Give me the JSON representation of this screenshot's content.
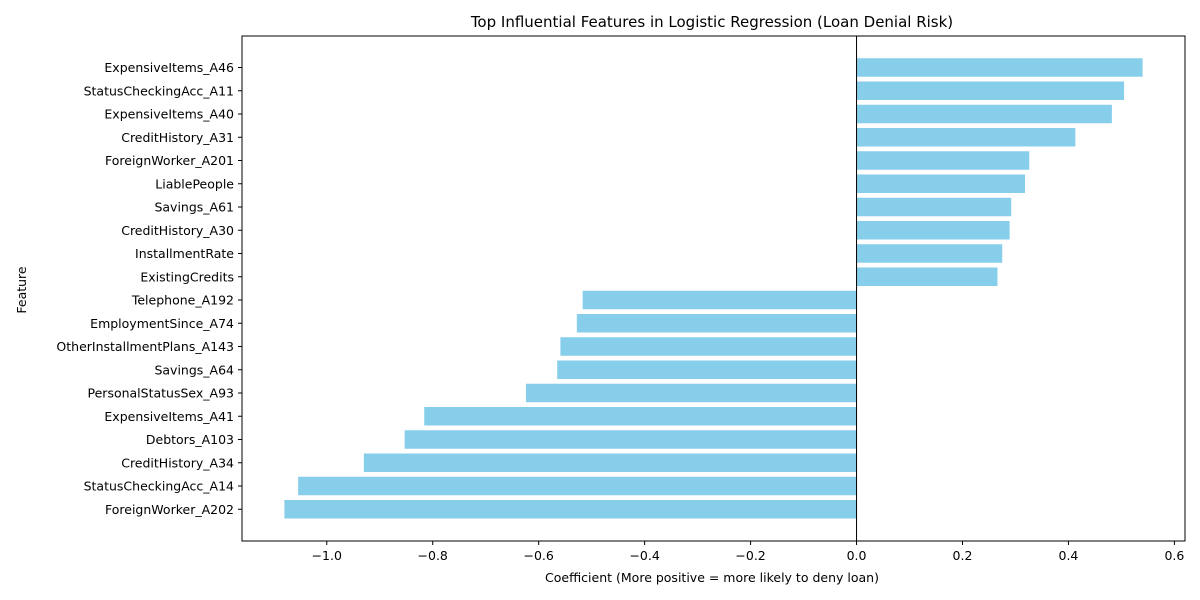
{
  "chart_data": {
    "type": "bar",
    "orientation": "horizontal",
    "title": "Top Influential Features in Logistic Regression (Loan Denial Risk)",
    "xlabel": "Coefficient (More positive = more likely to deny loan)",
    "ylabel": "Feature",
    "xlim": [
      -1.16,
      0.62
    ],
    "xticks": [
      -1.0,
      -0.8,
      -0.6,
      -0.4,
      -0.2,
      0.0,
      0.2,
      0.4,
      0.6
    ],
    "xtick_labels": [
      "−1.0",
      "−0.8",
      "−0.6",
      "−0.4",
      "−0.2",
      "0.0",
      "0.2",
      "0.4",
      "0.6"
    ],
    "grid": false,
    "bar_color": "#87CEEB",
    "categories": [
      "ExpensiveItems_A46",
      "StatusCheckingAcc_A11",
      "ExpensiveItems_A40",
      "CreditHistory_A31",
      "ForeignWorker_A201",
      "LiablePeople",
      "Savings_A61",
      "CreditHistory_A30",
      "InstallmentRate",
      "ExistingCredits",
      "Telephone_A192",
      "EmploymentSince_A74",
      "OtherInstallmentPlans_A143",
      "Savings_A64",
      "PersonalStatusSex_A93",
      "ExpensiveItems_A41",
      "Debtors_A103",
      "CreditHistory_A34",
      "StatusCheckingAcc_A14",
      "ForeignWorker_A202"
    ],
    "values": [
      0.54,
      0.505,
      0.482,
      0.413,
      0.326,
      0.318,
      0.292,
      0.289,
      0.275,
      0.266,
      -0.517,
      -0.528,
      -0.559,
      -0.565,
      -0.624,
      -0.816,
      -0.853,
      -0.93,
      -1.054,
      -1.08
    ]
  }
}
